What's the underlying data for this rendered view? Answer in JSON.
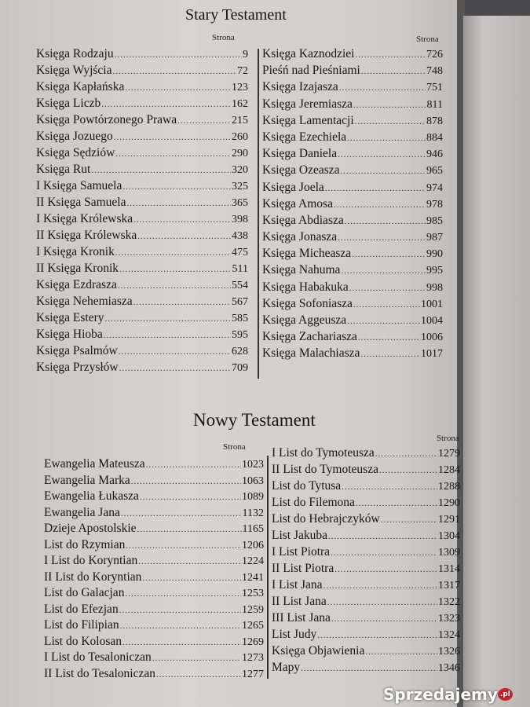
{
  "old_testament": {
    "title": "Stary Testament",
    "page_label": "Strona",
    "left": [
      {
        "name": "Księga Rodzaju",
        "page": "9"
      },
      {
        "name": "Księga Wyjścia",
        "page": "72"
      },
      {
        "name": "Księga Kapłańska",
        "page": "123"
      },
      {
        "name": "Księga Liczb",
        "page": "162"
      },
      {
        "name": "Księga Powtórzonego Prawa",
        "page": "215"
      },
      {
        "name": "Księga Jozuego",
        "page": "260"
      },
      {
        "name": "Księga Sędziów",
        "page": "290"
      },
      {
        "name": "Księga Rut",
        "page": "320"
      },
      {
        "name": "I Księga Samuela",
        "page": "325"
      },
      {
        "name": "II Księga Samuela",
        "page": "365"
      },
      {
        "name": "I Księga Królewska",
        "page": "398"
      },
      {
        "name": "II Księga Królewska",
        "page": "438"
      },
      {
        "name": "I Księga Kronik",
        "page": "475"
      },
      {
        "name": "II Księga Kronik",
        "page": "511"
      },
      {
        "name": "Księga Ezdrasza",
        "page": "554"
      },
      {
        "name": "Księga Nehemiasza",
        "page": "567"
      },
      {
        "name": "Księga Estery",
        "page": "585"
      },
      {
        "name": "Księga Hioba",
        "page": "595"
      },
      {
        "name": "Księga Psalmów",
        "page": "628"
      },
      {
        "name": "Księga Przysłów",
        "page": "709"
      }
    ],
    "right_page_label": "Strona",
    "right": [
      {
        "name": "Księga Kaznodziei",
        "page": "726"
      },
      {
        "name": "Pieśń nad Pieśniami",
        "page": "748"
      },
      {
        "name": "Księga Izajasza",
        "page": "751"
      },
      {
        "name": "Księga Jeremiasza",
        "page": "811"
      },
      {
        "name": "Księga Lamentacji",
        "page": "878"
      },
      {
        "name": "Księga Ezechiela",
        "page": "884"
      },
      {
        "name": "Księga Daniela",
        "page": "946"
      },
      {
        "name": "Księga Ozeasza",
        "page": "965"
      },
      {
        "name": "Księga Joela",
        "page": "974"
      },
      {
        "name": "Księga Amosa",
        "page": "978"
      },
      {
        "name": "Księga Abdiasza",
        "page": "985"
      },
      {
        "name": "Księga Jonasza",
        "page": "987"
      },
      {
        "name": "Księga Micheasza",
        "page": "990"
      },
      {
        "name": "Księga Nahuma",
        "page": "995"
      },
      {
        "name": "Księga Habakuka",
        "page": "998"
      },
      {
        "name": "Księga Sofoniasza",
        "page": "1001"
      },
      {
        "name": "Księga Aggeusza",
        "page": "1004"
      },
      {
        "name": "Księga Zachariasza",
        "page": "1006"
      },
      {
        "name": "Księga Malachiasza",
        "page": "1017"
      }
    ]
  },
  "new_testament": {
    "title": "Nowy Testament",
    "page_label": "Strona",
    "left": [
      {
        "name": "Ewangelia Mateusza",
        "page": "1023"
      },
      {
        "name": "Ewangelia Marka",
        "page": "1063"
      },
      {
        "name": "Ewangelia Łukasza",
        "page": "1089"
      },
      {
        "name": "Ewangelia Jana",
        "page": "1132"
      },
      {
        "name": "Dzieje Apostolskie",
        "page": "1165"
      },
      {
        "name": "List do Rzymian",
        "page": "1206"
      },
      {
        "name": "I List do Koryntian",
        "page": "1224"
      },
      {
        "name": "II List do Koryntian",
        "page": "1241"
      },
      {
        "name": "List do Galacjan",
        "page": "1253"
      },
      {
        "name": "List do Efezjan",
        "page": "1259"
      },
      {
        "name": "List do Filipian",
        "page": "1265"
      },
      {
        "name": "List do Kolosan",
        "page": "1269"
      },
      {
        "name": "I List do Tesaloniczan",
        "page": "1273"
      },
      {
        "name": "II List do Tesaloniczan",
        "page": "1277"
      }
    ],
    "right_page_label": "Strona",
    "right": [
      {
        "name": "I List do Tymoteusza",
        "page": "1279"
      },
      {
        "name": "II List do Tymoteusza",
        "page": "1284"
      },
      {
        "name": "List do Tytusa",
        "page": "1288"
      },
      {
        "name": "List do Filemona",
        "page": "1290"
      },
      {
        "name": "List do Hebrajczyków",
        "page": "1291"
      },
      {
        "name": "List Jakuba",
        "page": "1304"
      },
      {
        "name": "I List Piotra",
        "page": "1309"
      },
      {
        "name": "II List Piotra",
        "page": "1314"
      },
      {
        "name": "I List Jana",
        "page": "1317"
      },
      {
        "name": "II List Jana",
        "page": "1322"
      },
      {
        "name": "III List Jana",
        "page": "1323"
      },
      {
        "name": "List Judy",
        "page": "1324"
      },
      {
        "name": "Księga Objawienia",
        "page": "1326"
      },
      {
        "name": "Mapy",
        "page": "1346"
      }
    ]
  },
  "watermark": {
    "text": "Sprzedajemy",
    "suffix": ".pl"
  }
}
